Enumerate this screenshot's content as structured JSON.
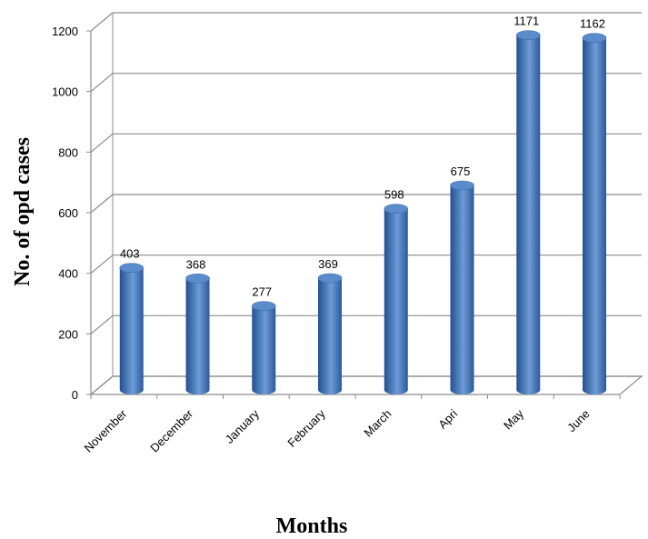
{
  "chart_data": {
    "type": "bar",
    "title": "",
    "xlabel": "Months",
    "ylabel": "No. of opd cases",
    "ylim": [
      0,
      1200
    ],
    "yticks": [
      0,
      200,
      400,
      600,
      800,
      1000,
      1200
    ],
    "grid": true,
    "style": "3d-cylinder",
    "categories": [
      "November",
      "December",
      "January",
      "February",
      "March",
      "Apri",
      "May",
      "June"
    ],
    "values": [
      403,
      368,
      277,
      369,
      598,
      675,
      1171,
      1162
    ],
    "bar_color": "#4f81bd"
  }
}
